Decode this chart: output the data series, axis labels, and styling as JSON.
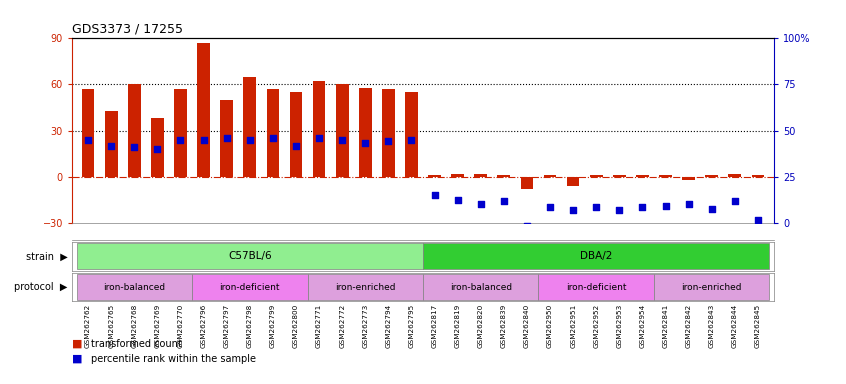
{
  "title": "GDS3373 / 17255",
  "samples": [
    "GSM262762",
    "GSM262765",
    "GSM262768",
    "GSM262769",
    "GSM262770",
    "GSM262796",
    "GSM262797",
    "GSM262798",
    "GSM262799",
    "GSM262800",
    "GSM262771",
    "GSM262772",
    "GSM262773",
    "GSM262794",
    "GSM262795",
    "GSM262817",
    "GSM262819",
    "GSM262820",
    "GSM262839",
    "GSM262840",
    "GSM262950",
    "GSM262951",
    "GSM262952",
    "GSM262953",
    "GSM262954",
    "GSM262841",
    "GSM262842",
    "GSM262843",
    "GSM262844",
    "GSM262845"
  ],
  "red_bars": [
    57,
    43,
    60,
    38,
    57,
    87,
    50,
    65,
    57,
    55,
    62,
    60,
    58,
    57,
    55,
    1,
    2,
    2,
    1,
    -8,
    1,
    -6,
    1,
    1,
    1,
    1,
    -2,
    1,
    2,
    1
  ],
  "blue_dots": [
    24,
    20,
    19,
    18,
    24,
    24,
    25,
    24,
    25,
    20,
    25,
    24,
    22,
    23,
    24,
    -12,
    -15,
    -18,
    -16,
    -32,
    -20,
    -22,
    -20,
    -22,
    -20,
    -19,
    -18,
    -21,
    -16,
    -28
  ],
  "ylim": [
    -30,
    90
  ],
  "yticks_left": [
    -30,
    0,
    30,
    60,
    90
  ],
  "yticks_right": [
    0,
    25,
    50,
    75,
    100
  ],
  "ytick_labels_right": [
    "0",
    "25",
    "50",
    "75",
    "100%"
  ],
  "dotted_lines": [
    30,
    60
  ],
  "strain_data": [
    {
      "label": "C57BL/6",
      "start": 0,
      "end": 14,
      "color": "#90EE90"
    },
    {
      "label": "DBA/2",
      "start": 15,
      "end": 29,
      "color": "#32CD32"
    }
  ],
  "protocol_groups": [
    {
      "label": "iron-balanced",
      "start": 0,
      "end": 4,
      "color": "#DDA0DD"
    },
    {
      "label": "iron-deficient",
      "start": 5,
      "end": 9,
      "color": "#EE82EE"
    },
    {
      "label": "iron-enriched",
      "start": 10,
      "end": 14,
      "color": "#DDA0DD"
    },
    {
      "label": "iron-balanced",
      "start": 15,
      "end": 19,
      "color": "#DDA0DD"
    },
    {
      "label": "iron-deficient",
      "start": 20,
      "end": 24,
      "color": "#EE82EE"
    },
    {
      "label": "iron-enriched",
      "start": 25,
      "end": 29,
      "color": "#DDA0DD"
    }
  ],
  "legend_items": [
    {
      "label": "transformed count",
      "color": "#CC2200"
    },
    {
      "label": "percentile rank within the sample",
      "color": "#0000CC"
    }
  ],
  "bar_color": "#CC2200",
  "dot_color": "#0000CC",
  "zero_line_color": "#CC2200",
  "bg_color": "#FFFFFF",
  "left_axis_color": "#CC2200",
  "right_axis_color": "#0000BB"
}
